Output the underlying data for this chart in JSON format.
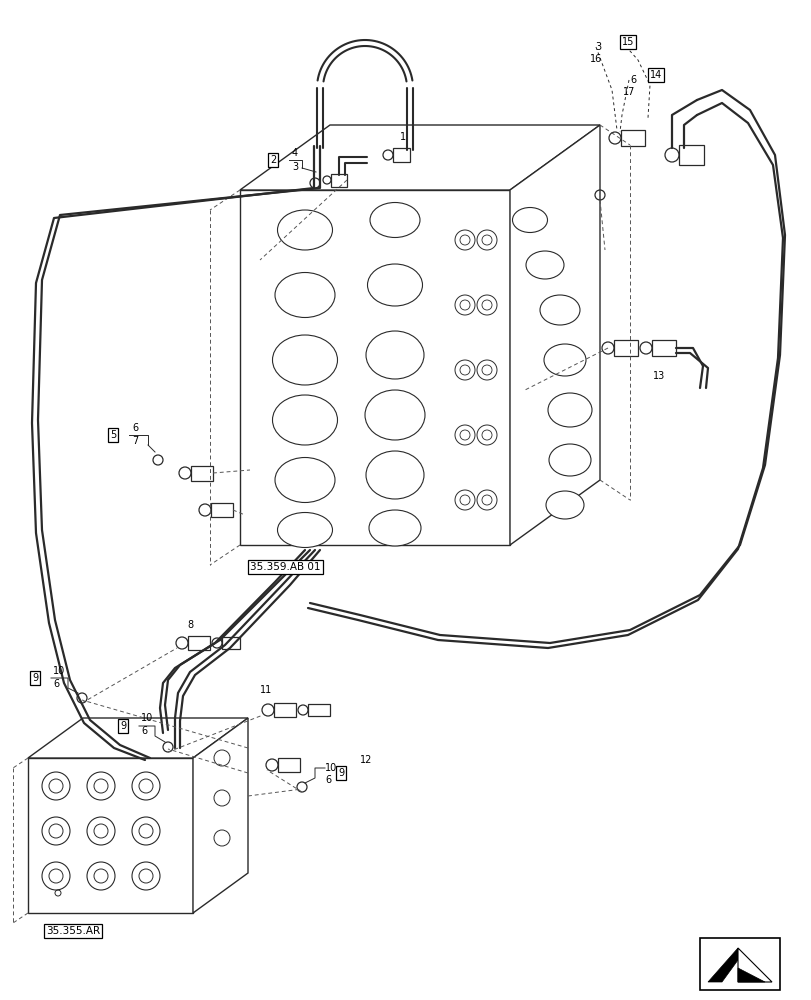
{
  "bg_color": "#ffffff",
  "line_color": "#2a2a2a",
  "text_color": "#000000",
  "fig_width": 8.12,
  "fig_height": 10.0,
  "dpi": 100,
  "label_35_359": "35.359.AB 01",
  "label_35_355": "35.355.AR"
}
